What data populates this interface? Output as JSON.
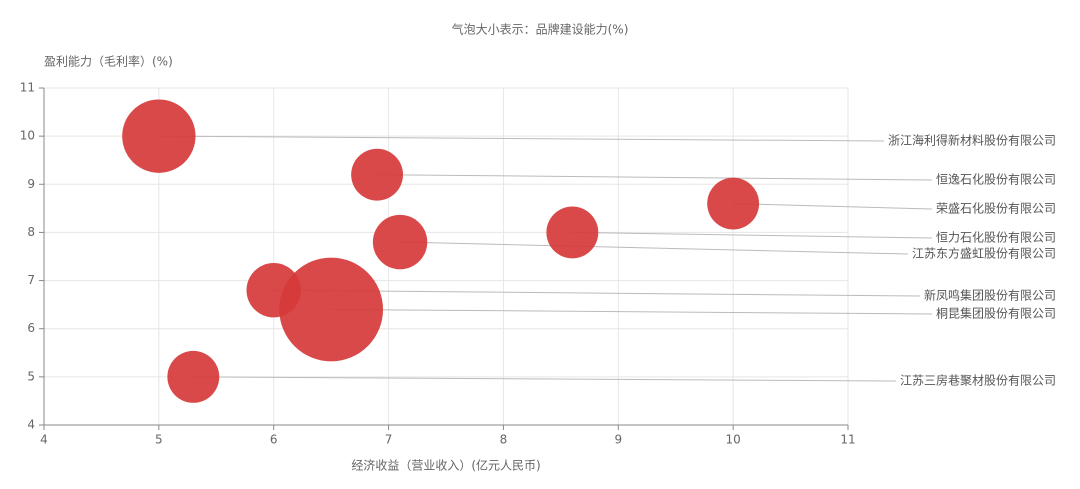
{
  "chart_data": {
    "type": "bubble",
    "title": "气泡大小表示：品牌建设能力(%)",
    "y_label": "盈利能力（毛利率）(%)",
    "x_label": "经济收益（营业收入）(亿元人民币)",
    "color": "#d63a3a",
    "xlim": [
      4,
      11
    ],
    "xticks": [
      4,
      5,
      6,
      7,
      8,
      9,
      10,
      11
    ],
    "ylim": [
      4,
      11
    ],
    "yticks": [
      4,
      5,
      6,
      7,
      8,
      9,
      10,
      11
    ],
    "grid": true,
    "series": [
      {
        "name": "浙江海利得新材料股份有限公司",
        "x": 5,
        "y": 10,
        "size": 10
      },
      {
        "name": "恒逸石化股份有限公司",
        "x": 6.9,
        "y": 9.2,
        "size": 5
      },
      {
        "name": "荣盛石化股份有限公司",
        "x": 10,
        "y": 8.6,
        "size": 5
      },
      {
        "name": "恒力石化股份有限公司",
        "x": 8.6,
        "y": 8.0,
        "size": 5
      },
      {
        "name": "江苏东方盛虹股份有限公司",
        "x": 7.1,
        "y": 7.8,
        "size": 5.5
      },
      {
        "name": "新凤鸣集团股份有限公司",
        "x": 6.0,
        "y": 6.8,
        "size": 5.5
      },
      {
        "name": "桐昆集团股份有限公司",
        "x": 6.5,
        "y": 6.4,
        "size": 20
      },
      {
        "name": "江苏三房巷聚材股份有限公司",
        "x": 5.3,
        "y": 5.0,
        "size": 5
      }
    ]
  }
}
